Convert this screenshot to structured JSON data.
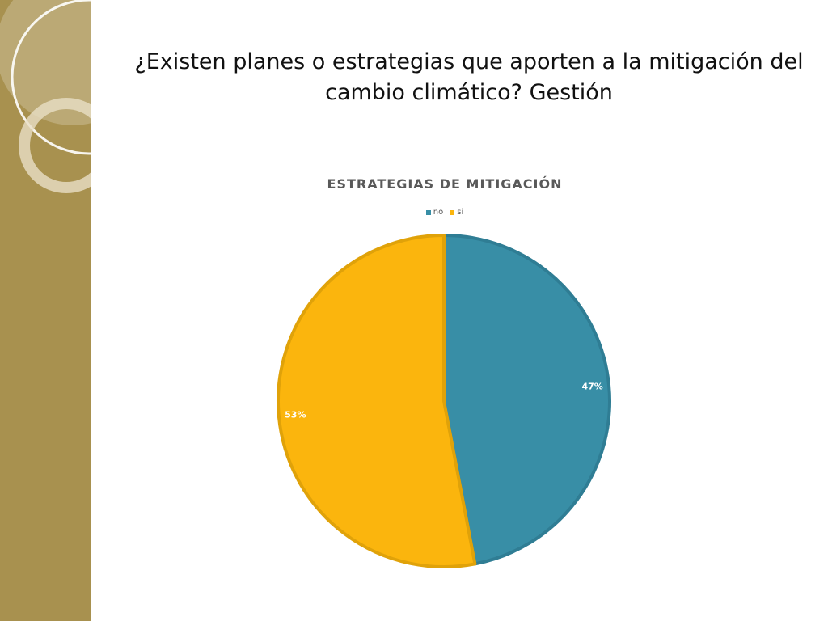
{
  "slide": {
    "title": "¿Existen planes o estrategias que aporten a la mitigación del cambio climático? Gestión"
  },
  "chart_data": {
    "type": "pie",
    "title": "ESTRATEGIAS DE MITIGACIÓN",
    "legend_position": "top",
    "slices": [
      {
        "name": "no",
        "value": 47,
        "label": "47%",
        "color": "#388ea6",
        "edge": "#2f7d94"
      },
      {
        "name": "si",
        "value": 53,
        "label": "53%",
        "color": "#fbb50d",
        "edge": "#e0a209"
      }
    ]
  },
  "colors": {
    "side_band": "#a8914f",
    "ring": "#ffffff"
  }
}
